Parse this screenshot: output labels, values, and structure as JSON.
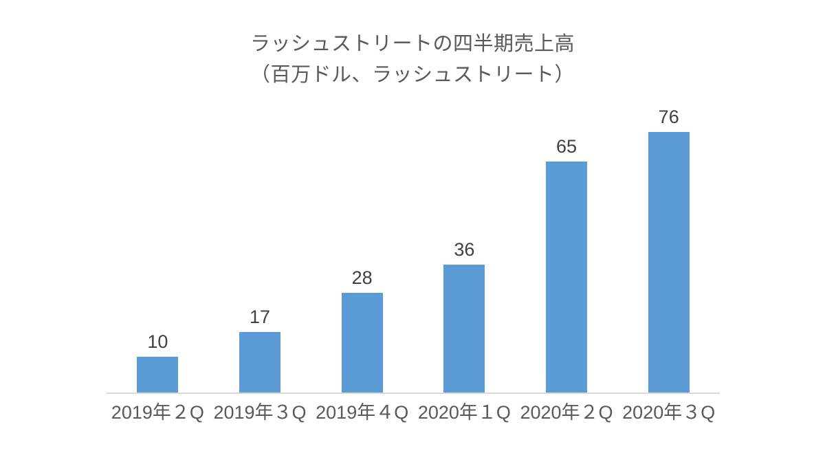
{
  "chart_data": {
    "type": "bar",
    "title_line1": "ラッシュストリートの四半期売上高",
    "title_line2": "（百万ドル、ラッシュストリート）",
    "categories": [
      "2019年２Q",
      "2019年３Q",
      "2019年４Q",
      "2020年１Q",
      "2020年２Q",
      "2020年３Q"
    ],
    "values": [
      10,
      17,
      28,
      36,
      65,
      76
    ],
    "xlabel": "",
    "ylabel": "",
    "ylim": [
      0,
      80
    ],
    "grid": false,
    "legend_position": "none",
    "data_labels": true,
    "colors": {
      "bar": "#5B9BD5",
      "title_text": "#595959",
      "value_label_text": "#404040",
      "axis_tick_text": "#595959",
      "axis_line": "#D9D9D9",
      "background": "#FFFFFF"
    }
  }
}
